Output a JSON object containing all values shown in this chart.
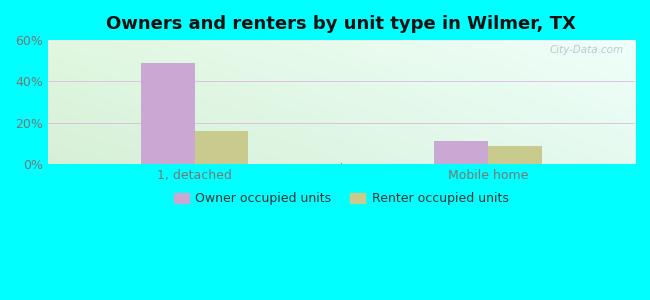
{
  "title": "Owners and renters by unit type in Wilmer, TX",
  "categories": [
    "1, detached",
    "Mobile home"
  ],
  "owner_values": [
    49,
    11
  ],
  "renter_values": [
    16,
    9
  ],
  "owner_color": "#c9a8d4",
  "renter_color": "#c8ca8e",
  "ylim": [
    0,
    60
  ],
  "yticks": [
    0,
    20,
    40,
    60
  ],
  "ytick_labels": [
    "0%",
    "20%",
    "40%",
    "60%"
  ],
  "legend_owner": "Owner occupied units",
  "legend_renter": "Renter occupied units",
  "outer_bg": "#00ffff",
  "watermark": "City-Data.com",
  "grid_color": "#ddbbdd",
  "tick_color": "#777777",
  "title_fontsize": 13,
  "label_fontsize": 9
}
